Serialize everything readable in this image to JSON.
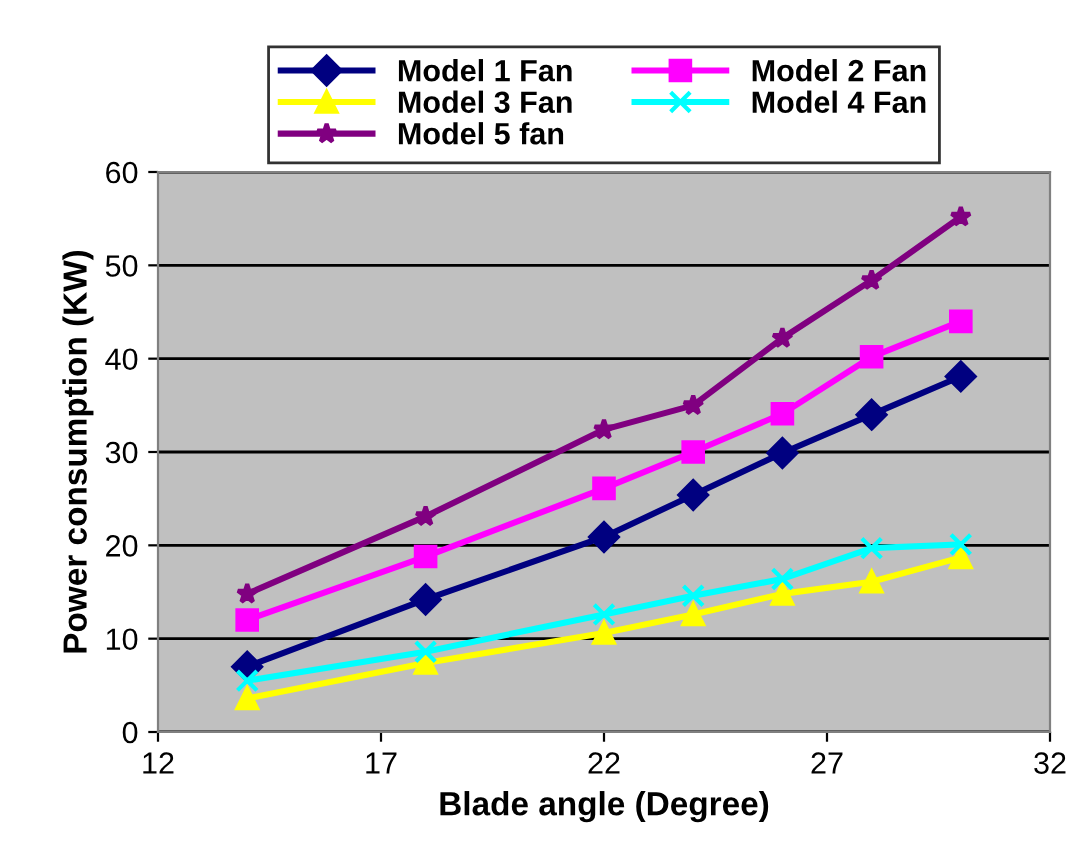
{
  "chart_data": {
    "type": "line",
    "xlabel": "Blade angle (Degree)",
    "ylabel": "Power consumption (KW)",
    "x": [
      14,
      18,
      22,
      24,
      26,
      28,
      30
    ],
    "series": [
      {
        "name": "Model 1 Fan",
        "color": "#000080",
        "marker": "diamond",
        "values": [
          7,
          14.2,
          20.9,
          25.4,
          29.9,
          34,
          38.1
        ]
      },
      {
        "name": "Model 2 Fan",
        "color": "#ff00ff",
        "marker": "square",
        "values": [
          12,
          18.8,
          26.1,
          30,
          34.1,
          40.2,
          44
        ]
      },
      {
        "name": "Model 3 Fan",
        "color": "#ffff00",
        "marker": "triangle",
        "values": [
          3.6,
          7.4,
          10.6,
          12.6,
          14.8,
          16.1,
          18.7
        ]
      },
      {
        "name": "Model 4 Fan",
        "color": "#00ffff",
        "marker": "cross",
        "values": [
          5.5,
          8.6,
          12.6,
          14.6,
          16.4,
          19.7,
          20.1
        ]
      },
      {
        "name": "Model 5 fan",
        "color": "#800080",
        "marker": "star",
        "values": [
          14.8,
          23.1,
          32.4,
          35,
          42.2,
          48.4,
          55.2
        ]
      }
    ],
    "xlim": [
      12,
      32
    ],
    "xticks": [
      12,
      17,
      22,
      27,
      32
    ],
    "ylim": [
      0,
      60
    ],
    "yticks": [
      0,
      10,
      20,
      30,
      40,
      50,
      60
    ],
    "grid": "y",
    "legend": "top",
    "line_style": "solid"
  }
}
